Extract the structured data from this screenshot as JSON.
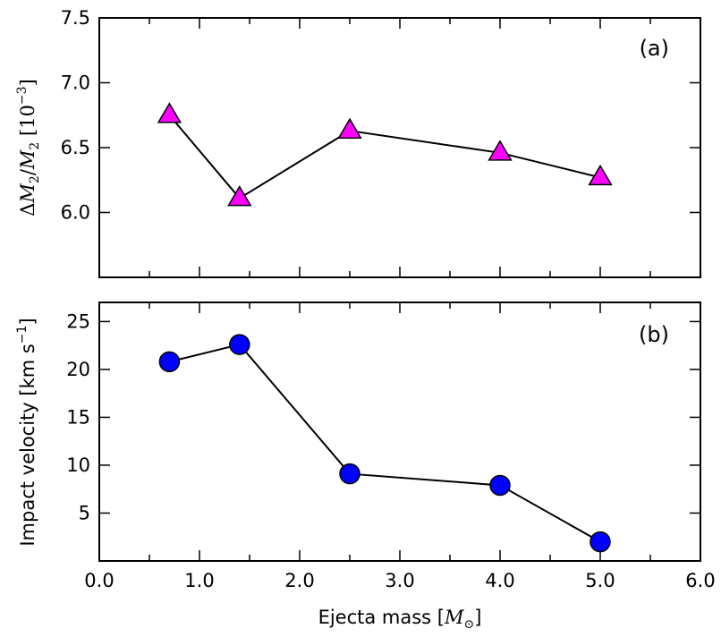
{
  "chart_data": [
    {
      "type": "line",
      "panel_label": "(a)",
      "ylabel": {
        "delta": "Δ",
        "m": "M",
        "sub": "2",
        "slash": "/",
        "m2": "M",
        "sub2": "2",
        "unit_open": " [10",
        "exp": "−3",
        "unit_close": "]"
      },
      "xlim": [
        0.0,
        6.0
      ],
      "ylim": [
        5.5,
        7.5
      ],
      "yticks": [
        6.0,
        6.5,
        7.0,
        7.5
      ],
      "ytick_labels": [
        "6.0",
        "6.5",
        "7.0",
        "7.5"
      ],
      "marker": "triangle",
      "marker_color": "#ff00ff",
      "x": [
        0.7,
        1.4,
        2.5,
        4.0,
        5.0
      ],
      "y": [
        6.75,
        6.11,
        6.63,
        6.46,
        6.27
      ]
    },
    {
      "type": "line",
      "panel_label": "(b)",
      "ylabel": {
        "text": "Impact velocity [km s",
        "exp": "−1",
        "close": "]"
      },
      "xlim": [
        0.0,
        6.0
      ],
      "ylim": [
        0,
        27
      ],
      "yticks": [
        5,
        10,
        15,
        20,
        25
      ],
      "ytick_labels": [
        "5",
        "10",
        "15",
        "20",
        "25"
      ],
      "marker": "circle",
      "marker_color": "#0000ff",
      "x": [
        0.7,
        1.4,
        2.5,
        4.0,
        5.0
      ],
      "y": [
        20.8,
        22.6,
        9.1,
        7.9,
        2.0
      ]
    }
  ],
  "xaxis": {
    "ticks": [
      0.0,
      1.0,
      2.0,
      3.0,
      4.0,
      5.0,
      6.0
    ],
    "tick_labels": [
      "0.0",
      "1.0",
      "2.0",
      "3.0",
      "4.0",
      "5.0",
      "6.0"
    ],
    "label": {
      "text": "Ejecta mass  [",
      "m": "M",
      "sub": "⊙",
      "close": "]"
    }
  }
}
